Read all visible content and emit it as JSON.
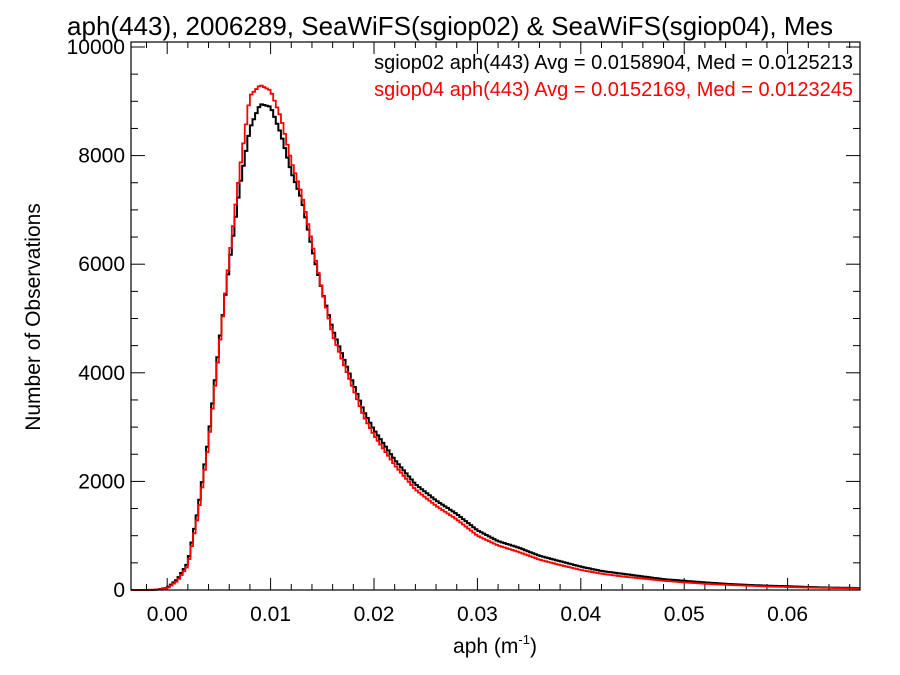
{
  "chart_data": {
    "type": "line",
    "title": "aph(443), 2006289, SeaWiFS(sgiop02) & SeaWiFS(sgiop04), Mes",
    "xlabel": "aph (m",
    "xlabel_sup": "-1",
    "xlabel_close": ")",
    "ylabel": "Number of Observations",
    "xlim": [
      -0.0035,
      0.067
    ],
    "ylim": [
      0,
      10000
    ],
    "x_ticks": [
      "0.00",
      "0.01",
      "0.02",
      "0.03",
      "0.04",
      "0.05",
      "0.06"
    ],
    "x_tick_values": [
      0.0,
      0.01,
      0.02,
      0.03,
      0.04,
      0.05,
      0.06
    ],
    "y_ticks": [
      "0",
      "2000",
      "4000",
      "6000",
      "8000",
      "10000"
    ],
    "y_tick_values": [
      0,
      2000,
      4000,
      6000,
      8000,
      10000
    ],
    "grid": false,
    "legend_position": "top-right",
    "series": [
      {
        "name": "sgiop02",
        "legend": "sgiop02 aph(443) Avg = 0.0158904, Med = 0.0125213",
        "color": "#000000",
        "points": [
          [
            -0.003,
            0
          ],
          [
            -0.002,
            0
          ],
          [
            -0.001,
            5
          ],
          [
            0.0,
            40
          ],
          [
            0.001,
            200
          ],
          [
            0.002,
            500
          ],
          [
            0.003,
            1500
          ],
          [
            0.004,
            2800
          ],
          [
            0.005,
            4500
          ],
          [
            0.006,
            6000
          ],
          [
            0.007,
            7400
          ],
          [
            0.008,
            8500
          ],
          [
            0.009,
            8950
          ],
          [
            0.01,
            8900
          ],
          [
            0.011,
            8400
          ],
          [
            0.012,
            7700
          ],
          [
            0.013,
            7200
          ],
          [
            0.014,
            6300
          ],
          [
            0.015,
            5500
          ],
          [
            0.016,
            4800
          ],
          [
            0.017,
            4300
          ],
          [
            0.018,
            3800
          ],
          [
            0.019,
            3300
          ],
          [
            0.02,
            2950
          ],
          [
            0.022,
            2400
          ],
          [
            0.024,
            1950
          ],
          [
            0.026,
            1650
          ],
          [
            0.028,
            1400
          ],
          [
            0.03,
            1100
          ],
          [
            0.032,
            900
          ],
          [
            0.034,
            780
          ],
          [
            0.036,
            630
          ],
          [
            0.038,
            530
          ],
          [
            0.04,
            430
          ],
          [
            0.042,
            350
          ],
          [
            0.044,
            300
          ],
          [
            0.046,
            250
          ],
          [
            0.048,
            200
          ],
          [
            0.05,
            170
          ],
          [
            0.052,
            140
          ],
          [
            0.054,
            115
          ],
          [
            0.056,
            95
          ],
          [
            0.058,
            80
          ],
          [
            0.06,
            70
          ],
          [
            0.062,
            55
          ],
          [
            0.064,
            45
          ],
          [
            0.066,
            40
          ],
          [
            0.067,
            35
          ]
        ]
      },
      {
        "name": "sgiop04",
        "legend": "sgiop04 aph(443) Avg = 0.0152169, Med = 0.0123245",
        "color": "#ff0000",
        "points": [
          [
            -0.003,
            0
          ],
          [
            -0.002,
            0
          ],
          [
            -0.001,
            5
          ],
          [
            0.0,
            30
          ],
          [
            0.001,
            170
          ],
          [
            0.002,
            450
          ],
          [
            0.003,
            1400
          ],
          [
            0.004,
            2700
          ],
          [
            0.005,
            4400
          ],
          [
            0.006,
            6100
          ],
          [
            0.007,
            7700
          ],
          [
            0.008,
            9100
          ],
          [
            0.009,
            9300
          ],
          [
            0.01,
            9200
          ],
          [
            0.011,
            8700
          ],
          [
            0.012,
            7900
          ],
          [
            0.013,
            7300
          ],
          [
            0.014,
            6400
          ],
          [
            0.015,
            5500
          ],
          [
            0.016,
            4700
          ],
          [
            0.017,
            4200
          ],
          [
            0.018,
            3700
          ],
          [
            0.019,
            3200
          ],
          [
            0.02,
            2850
          ],
          [
            0.022,
            2300
          ],
          [
            0.024,
            1850
          ],
          [
            0.026,
            1550
          ],
          [
            0.028,
            1300
          ],
          [
            0.03,
            1000
          ],
          [
            0.032,
            820
          ],
          [
            0.034,
            700
          ],
          [
            0.036,
            560
          ],
          [
            0.038,
            460
          ],
          [
            0.04,
            370
          ],
          [
            0.042,
            300
          ],
          [
            0.044,
            250
          ],
          [
            0.046,
            210
          ],
          [
            0.048,
            170
          ],
          [
            0.05,
            140
          ],
          [
            0.052,
            115
          ],
          [
            0.054,
            95
          ],
          [
            0.056,
            80
          ],
          [
            0.058,
            65
          ],
          [
            0.06,
            55
          ],
          [
            0.062,
            45
          ],
          [
            0.064,
            38
          ],
          [
            0.066,
            32
          ],
          [
            0.067,
            30
          ]
        ]
      }
    ]
  }
}
